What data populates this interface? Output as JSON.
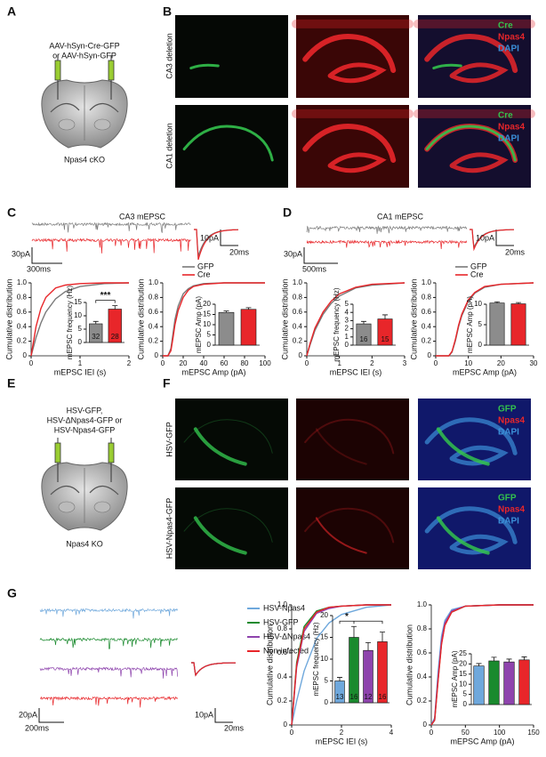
{
  "panel_labels": [
    "A",
    "B",
    "C",
    "D",
    "E",
    "F",
    "G"
  ],
  "panel_a": {
    "injection": [
      "AAV-hSyn-Cre-GFP",
      "or AAV-hSyn-GFP"
    ],
    "mouse": "Npas4 cKO"
  },
  "panel_b": {
    "rows": [
      "CA3 deletion",
      "CA1 deletion"
    ],
    "channels": [
      {
        "name": "Cre",
        "color": "#33c24d"
      },
      {
        "name": "Npas4",
        "color": "#e8262a"
      },
      {
        "name": "DAPI",
        "color": "#3b8fd8"
      }
    ]
  },
  "panel_c": {
    "title": "CA3 mEPSC",
    "trace_colors": [
      "#7a7a7a",
      "#e8262a"
    ],
    "scale_trace": [
      "30pA",
      "300ms"
    ],
    "scale_avg": [
      "10pA",
      "20ms"
    ]
  },
  "panel_d": {
    "title": "CA1 mEPSC",
    "trace_colors": [
      "#7a7a7a",
      "#e8262a"
    ],
    "scale_trace": [
      "30pA",
      "500ms"
    ],
    "scale_avg": [
      "10pA",
      "20ms"
    ]
  },
  "panel_e": {
    "injection": [
      "HSV-GFP,",
      "HSV-ΔNpas4-GFP or",
      "HSV-Npas4-GFP"
    ],
    "mouse": "Npas4 KO"
  },
  "panel_f": {
    "rows": [
      "HSV-GFP",
      "HSV-Npas4-GFP"
    ],
    "channels": [
      {
        "name": "GFP",
        "color": "#33c24d"
      },
      {
        "name": "Npas4",
        "color": "#e8262a"
      },
      {
        "name": "DAPI",
        "color": "#3b8fd8"
      }
    ]
  },
  "panel_g": {
    "scale_trace": [
      "20pA",
      "200ms"
    ],
    "scale_avg": [
      "10pA",
      "20ms"
    ],
    "traces": [
      {
        "name": "HSV-Npas4",
        "color": "#6fa8dc"
      },
      {
        "name": "HSV-GFP",
        "color": "#1a8a2e"
      },
      {
        "name": "HSV-ΔNpas4",
        "color": "#8e44ad"
      },
      {
        "name": "Non-infected",
        "color": "#e8262a"
      }
    ]
  },
  "chart_data": [
    {
      "type": "line",
      "xlabel": "mEPSC IEI (s)",
      "ylabel": "Cumulative distribution",
      "xlim": [
        0,
        2
      ],
      "xticks": [
        0,
        1,
        2
      ],
      "ylim": [
        0,
        1
      ],
      "yticks": [
        0,
        0.2,
        0.4,
        0.6,
        0.8,
        {
          "value": 1,
          "label": "1.0"
        }
      ],
      "legend": false,
      "series": [
        {
          "name": "GFP",
          "color": "#7a7a7a",
          "x": [
            0,
            0.1,
            0.2,
            0.3,
            0.5,
            0.7,
            1.0,
            1.5,
            2.0
          ],
          "values": [
            0,
            0.25,
            0.45,
            0.6,
            0.78,
            0.88,
            0.95,
            0.99,
            1
          ]
        },
        {
          "name": "Cre",
          "color": "#e8262a",
          "x": [
            0,
            0.1,
            0.2,
            0.3,
            0.5,
            0.7,
            1.0,
            1.5,
            2.0
          ],
          "values": [
            0,
            0.4,
            0.65,
            0.8,
            0.93,
            0.97,
            0.99,
            1,
            1
          ]
        }
      ],
      "inset": {
        "type": "bar",
        "ylabel": "mEPSC frequency (Hz)",
        "ylim": [
          0,
          15
        ],
        "yticks": [
          0,
          5,
          10,
          15
        ],
        "values": [
          7,
          12.5
        ],
        "errors": [
          0.9,
          1.3
        ],
        "colors": [
          "#8c8c8c",
          "#e8262a"
        ],
        "n": [
          32,
          28
        ],
        "significance": "***"
      }
    },
    {
      "type": "line",
      "xlabel": "mEPSC Amp (pA)",
      "ylabel": "Cumulative distribution",
      "xlim": [
        0,
        100
      ],
      "xticks": [
        0,
        20,
        40,
        60,
        80,
        100
      ],
      "ylim": [
        0,
        1
      ],
      "yticks": [
        0,
        0.2,
        0.4,
        0.6,
        0.8,
        {
          "value": 1,
          "label": "1.0"
        }
      ],
      "legend": true,
      "series": [
        {
          "name": "GFP",
          "color": "#7a7a7a",
          "x": [
            0,
            5,
            8,
            10,
            12,
            15,
            20,
            25,
            30,
            40,
            60,
            100
          ],
          "values": [
            0,
            0,
            0.1,
            0.3,
            0.5,
            0.68,
            0.85,
            0.92,
            0.96,
            0.99,
            1,
            1
          ]
        },
        {
          "name": "Cre",
          "color": "#e8262a",
          "x": [
            0,
            5,
            8,
            10,
            12,
            15,
            20,
            25,
            30,
            40,
            60,
            100
          ],
          "values": [
            0,
            0,
            0.07,
            0.24,
            0.43,
            0.62,
            0.8,
            0.9,
            0.95,
            0.98,
            1,
            1
          ]
        }
      ],
      "inset": {
        "type": "bar",
        "ylabel": "mEPSC Amp (pA)",
        "ylim": [
          0,
          20
        ],
        "yticks": [
          0,
          5,
          10,
          15,
          20
        ],
        "values": [
          16,
          17.5
        ],
        "errors": [
          0.7,
          0.8
        ],
        "colors": [
          "#8c8c8c",
          "#e8262a"
        ]
      }
    },
    {
      "type": "line",
      "xlabel": "mEPSC IEI (s)",
      "ylabel": "Cumulative distribution",
      "xlim": [
        0,
        3
      ],
      "xticks": [
        0,
        1,
        2,
        3
      ],
      "ylim": [
        0,
        1
      ],
      "yticks": [
        0,
        0.2,
        0.4,
        0.6,
        0.8,
        {
          "value": 1,
          "label": "1.0"
        }
      ],
      "legend": false,
      "series": [
        {
          "name": "GFP",
          "color": "#7a7a7a",
          "x": [
            0,
            0.1,
            0.25,
            0.5,
            0.75,
            1,
            1.5,
            2,
            3
          ],
          "values": [
            0,
            0.15,
            0.35,
            0.57,
            0.72,
            0.82,
            0.93,
            0.97,
            1
          ]
        },
        {
          "name": "Cre",
          "color": "#e8262a",
          "x": [
            0,
            0.1,
            0.25,
            0.5,
            0.75,
            1,
            1.5,
            2,
            3
          ],
          "values": [
            0,
            0.17,
            0.38,
            0.6,
            0.75,
            0.85,
            0.94,
            0.98,
            1
          ]
        }
      ],
      "inset": {
        "type": "bar",
        "ylabel": "mEPSC frequency (Hz)",
        "ylim": [
          0,
          5
        ],
        "yticks": [
          0,
          1,
          2,
          3,
          4,
          5
        ],
        "values": [
          2.6,
          3.2
        ],
        "errors": [
          0.3,
          0.5
        ],
        "colors": [
          "#8c8c8c",
          "#e8262a"
        ],
        "n": [
          16,
          15
        ]
      }
    },
    {
      "type": "line",
      "xlabel": "mEPSC Amp (pA)",
      "ylabel": "Cumulative distribution",
      "xlim": [
        0,
        30
      ],
      "xticks": [
        0,
        10,
        20,
        30
      ],
      "ylim": [
        0,
        1
      ],
      "yticks": [
        0,
        0.2,
        0.4,
        0.6,
        0.8,
        {
          "value": 1,
          "label": "1.0"
        }
      ],
      "legend": true,
      "series": [
        {
          "name": "GFP",
          "color": "#7a7a7a",
          "x": [
            0,
            4,
            5,
            6,
            7,
            8,
            10,
            12,
            15,
            20,
            30
          ],
          "values": [
            0,
            0,
            0.05,
            0.2,
            0.4,
            0.55,
            0.75,
            0.86,
            0.94,
            0.98,
            1
          ]
        },
        {
          "name": "Cre",
          "color": "#e8262a",
          "x": [
            0,
            4,
            5,
            6,
            7,
            8,
            10,
            12,
            15,
            20,
            30
          ],
          "values": [
            0,
            0,
            0.06,
            0.22,
            0.42,
            0.57,
            0.77,
            0.87,
            0.95,
            0.98,
            1
          ]
        }
      ],
      "inset": {
        "type": "bar",
        "ylabel": "mEPSC Amp (pA)",
        "ylim": [
          0,
          10
        ],
        "yticks": [
          0,
          5,
          10
        ],
        "values": [
          10.3,
          10.1
        ],
        "errors": [
          0.3,
          0.3
        ],
        "colors": [
          "#8c8c8c",
          "#e8262a"
        ]
      }
    },
    {
      "type": "line",
      "xlabel": "mEPSC IEI (s)",
      "ylabel": "Cumulative distribution",
      "xlim": [
        0,
        4
      ],
      "xticks": [
        0,
        2,
        4
      ],
      "ylim": [
        0,
        1
      ],
      "yticks": [
        0,
        0.2,
        0.4,
        0.6,
        0.8,
        {
          "value": 1,
          "label": "1.0"
        }
      ],
      "legend": false,
      "series": [
        {
          "name": "HSV-Npas4",
          "color": "#6fa8dc",
          "x": [
            0,
            0.2,
            0.5,
            1,
            1.5,
            2,
            3,
            4
          ],
          "values": [
            0,
            0.2,
            0.45,
            0.72,
            0.85,
            0.92,
            0.98,
            1
          ]
        },
        {
          "name": "HSV-GFP",
          "color": "#1a8a2e",
          "x": [
            0,
            0.2,
            0.5,
            1,
            1.5,
            2,
            3,
            4
          ],
          "values": [
            0,
            0.52,
            0.82,
            0.95,
            0.98,
            0.99,
            1,
            1
          ]
        },
        {
          "name": "HSV-ΔNpas4",
          "color": "#8e44ad",
          "x": [
            0,
            0.2,
            0.5,
            1,
            1.5,
            2,
            3,
            4
          ],
          "values": [
            0,
            0.48,
            0.78,
            0.93,
            0.97,
            0.99,
            1,
            1
          ]
        },
        {
          "name": "Non-infected",
          "color": "#e8262a",
          "x": [
            0,
            0.2,
            0.5,
            1,
            1.5,
            2,
            3,
            4
          ],
          "values": [
            0,
            0.5,
            0.8,
            0.94,
            0.98,
            0.99,
            1,
            1
          ]
        }
      ],
      "inset": {
        "type": "bar",
        "ylabel": "mEPSC frequency (Hz)",
        "ylim": [
          0,
          20
        ],
        "yticks": [
          0,
          5,
          10,
          15,
          20
        ],
        "values": [
          5,
          15,
          12,
          14
        ],
        "errors": [
          0.8,
          2.5,
          1.8,
          2.2
        ],
        "colors": [
          "#6fa8dc",
          "#1a8a2e",
          "#8e44ad",
          "#e8262a"
        ],
        "n": [
          13,
          16,
          12,
          16
        ],
        "significance": "*"
      }
    },
    {
      "type": "line",
      "xlabel": "mEPSC Amp (pA)",
      "ylabel": "Cumulative distribution",
      "xlim": [
        0,
        150
      ],
      "xticks": [
        0,
        50,
        100,
        150
      ],
      "ylim": [
        0,
        1
      ],
      "yticks": [
        0,
        0.2,
        0.4,
        0.6,
        0.8,
        {
          "value": 1,
          "label": "1.0"
        }
      ],
      "legend": false,
      "series": [
        {
          "name": "HSV-Npas4",
          "color": "#6fa8dc",
          "x": [
            0,
            5,
            10,
            15,
            20,
            30,
            50,
            100,
            150
          ],
          "values": [
            0,
            0.06,
            0.45,
            0.74,
            0.87,
            0.96,
            0.99,
            1,
            1
          ]
        },
        {
          "name": "HSV-GFP",
          "color": "#1a8a2e",
          "x": [
            0,
            5,
            10,
            15,
            20,
            30,
            50,
            100,
            150
          ],
          "values": [
            0,
            0.04,
            0.38,
            0.68,
            0.84,
            0.94,
            0.99,
            1,
            1
          ]
        },
        {
          "name": "HSV-ΔNpas4",
          "color": "#8e44ad",
          "x": [
            0,
            5,
            10,
            15,
            20,
            30,
            50,
            100,
            150
          ],
          "values": [
            0,
            0.05,
            0.4,
            0.7,
            0.85,
            0.95,
            0.99,
            1,
            1
          ]
        },
        {
          "name": "Non-infected",
          "color": "#e8262a",
          "x": [
            0,
            5,
            10,
            15,
            20,
            30,
            50,
            100,
            150
          ],
          "values": [
            0,
            0.04,
            0.37,
            0.67,
            0.83,
            0.94,
            0.99,
            1,
            1
          ]
        }
      ],
      "inset": {
        "type": "bar",
        "ylabel": "mEPSC Amp (pA)",
        "ylim": [
          0,
          25
        ],
        "yticks": [
          0,
          5,
          10,
          15,
          20,
          25
        ],
        "values": [
          19,
          21.5,
          21,
          22
        ],
        "errors": [
          1.2,
          1.8,
          1.4,
          1.5
        ],
        "colors": [
          "#6fa8dc",
          "#1a8a2e",
          "#8e44ad",
          "#e8262a"
        ]
      }
    }
  ]
}
